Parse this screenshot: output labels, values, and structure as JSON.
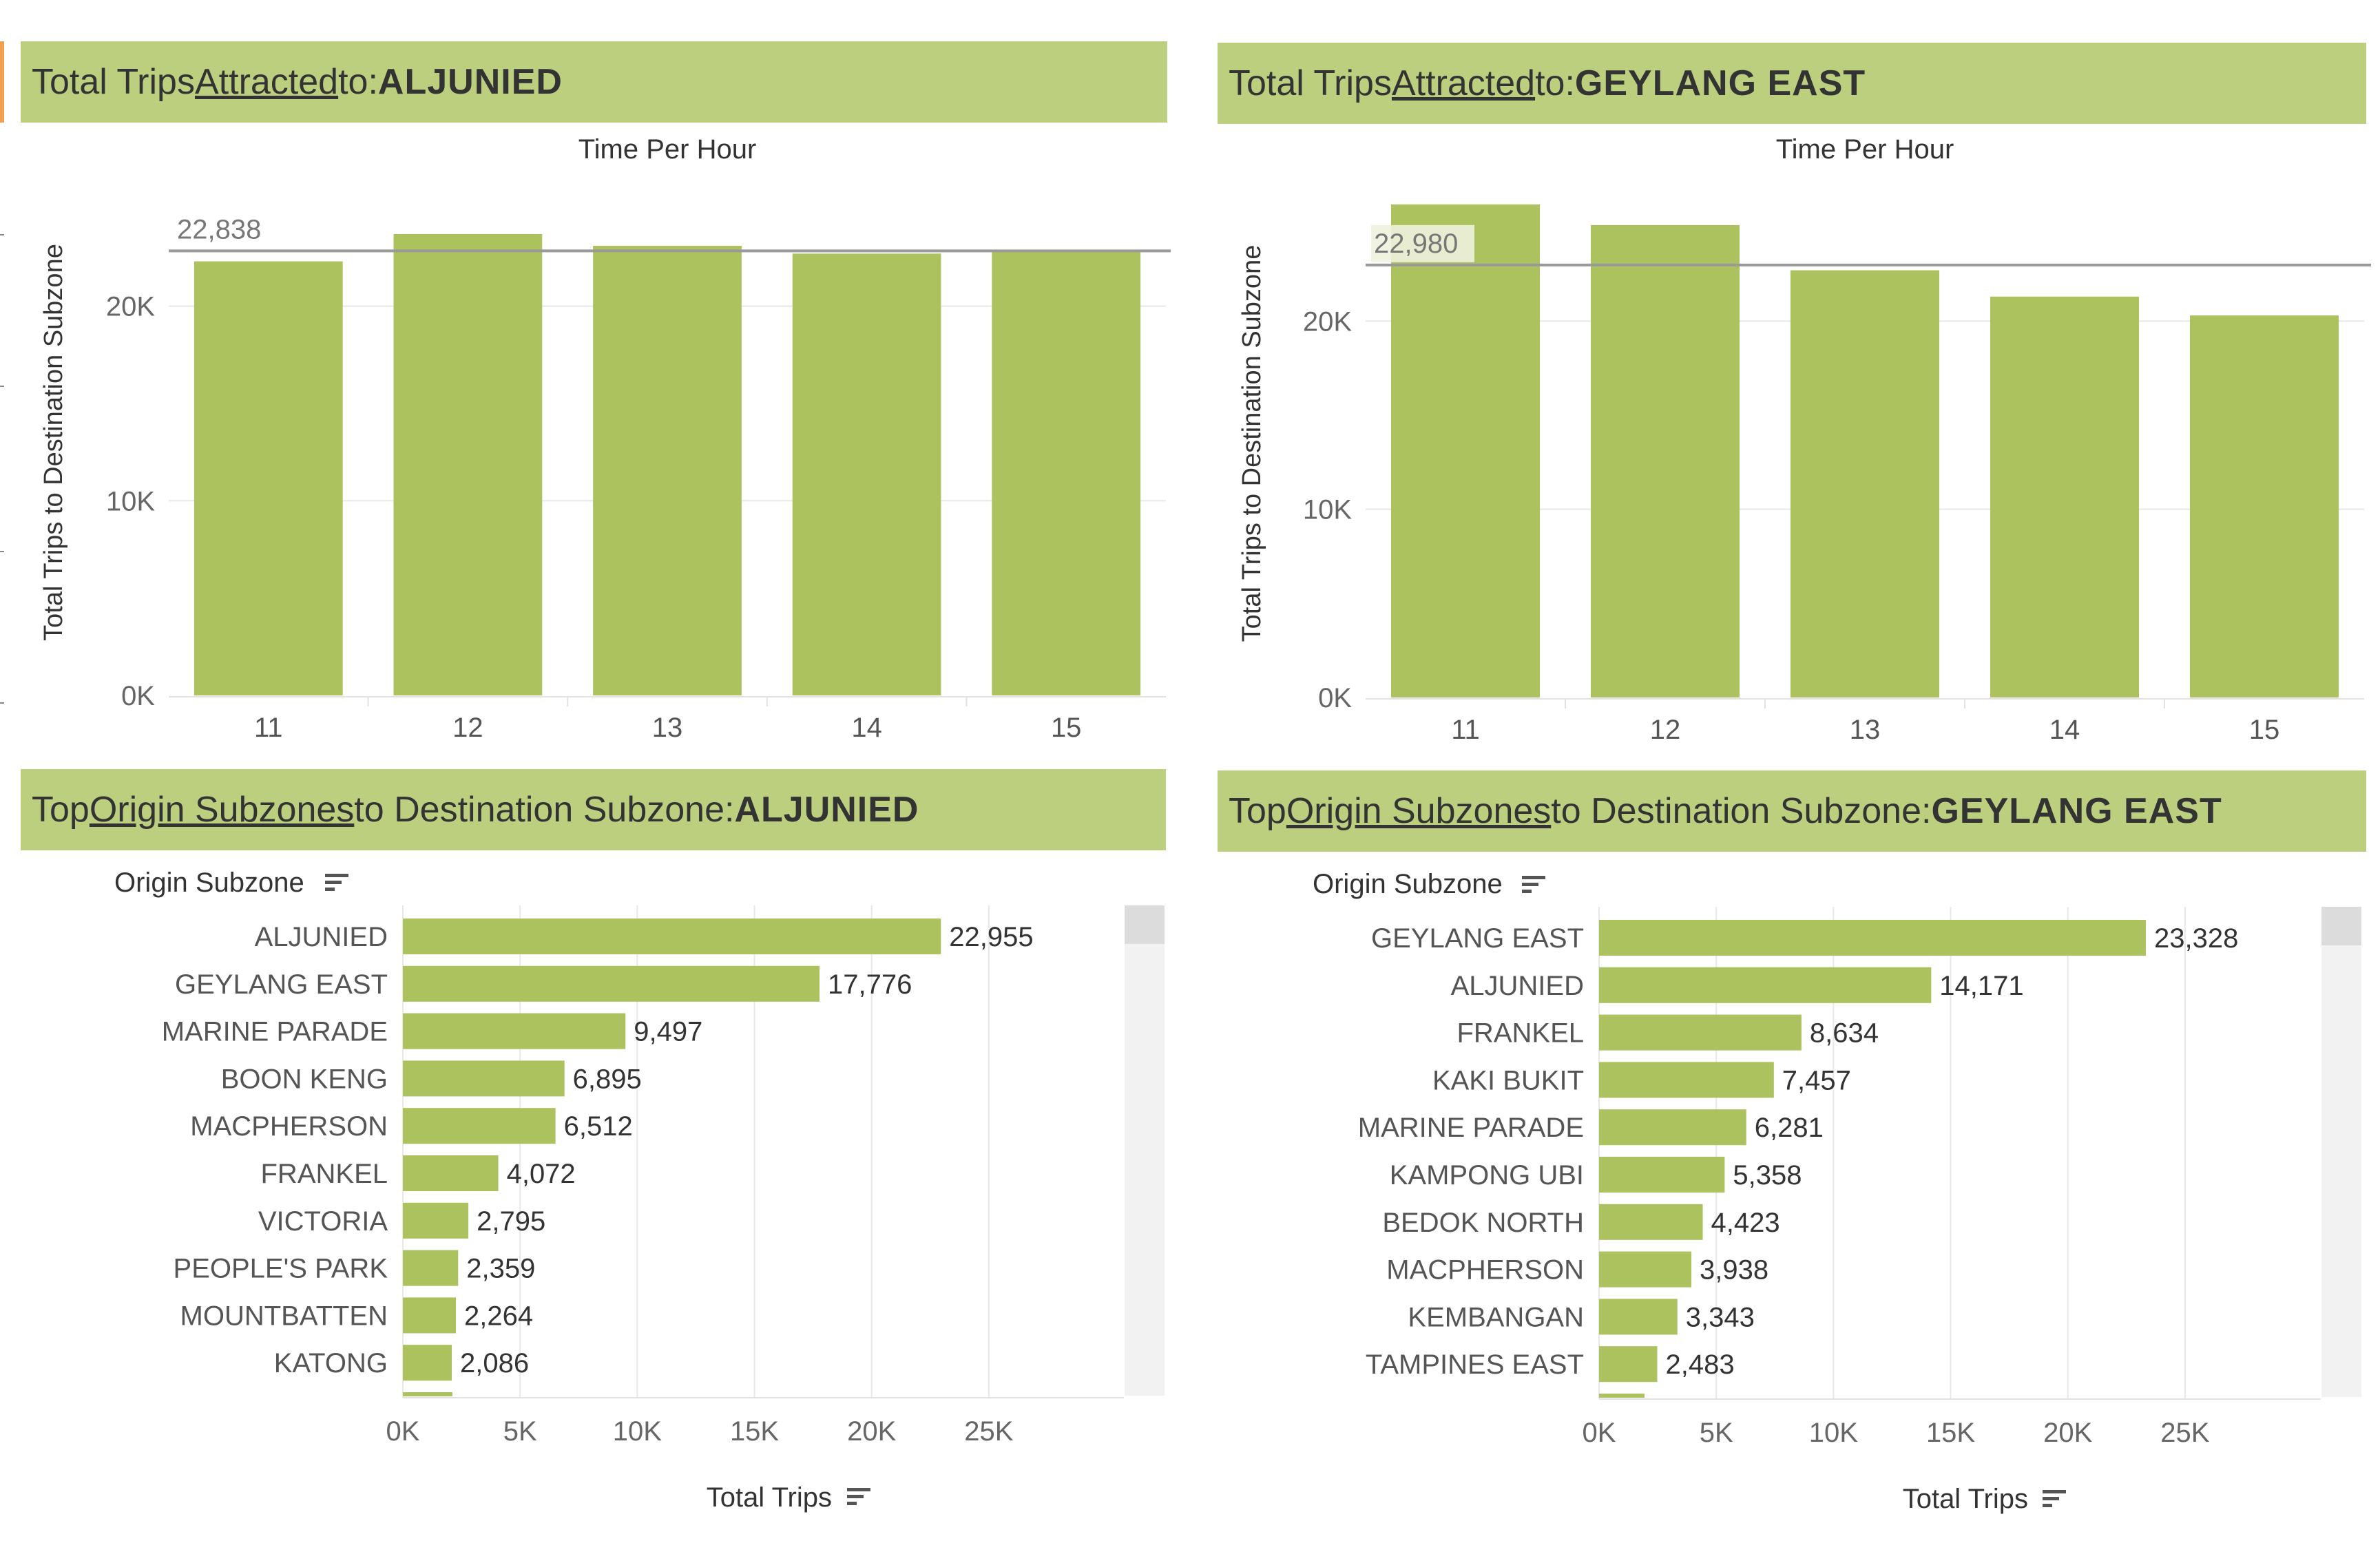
{
  "panels": {
    "tl_banner": {
      "prefix": "Total Trips ",
      "link": "Attracted",
      "mid": " to: ",
      "dest": "ALJUNIED"
    },
    "tr_banner": {
      "prefix": "Total Trips ",
      "link": "Attracted",
      "mid": " to: ",
      "dest": "GEYLANG EAST"
    },
    "bl_banner": {
      "prefix": "Top ",
      "link": "Origin Subzones",
      "mid": " to Destination Subzone: ",
      "dest": "ALJUNIED"
    },
    "br_banner": {
      "prefix": "Top ",
      "link": "Origin Subzones",
      "mid": " to Destination Subzone: ",
      "dest": "GEYLANG EAST"
    }
  },
  "colors": {
    "bar": "#acc25e",
    "banner": "#bccf7e",
    "grid": "#e8e8e8",
    "refline": "#999999"
  },
  "icons": {
    "sort": "sort-descending-icon"
  },
  "chart_data": [
    {
      "type": "bar",
      "title": "Total Trips Attracted to: ALJUNIED",
      "xlabel": "Time Per Hour",
      "ylabel": "Total Trips to Destination Subzone",
      "categories": [
        "11",
        "12",
        "13",
        "14",
        "15"
      ],
      "values": [
        22300,
        23700,
        23100,
        22700,
        22900
      ],
      "ylim": [
        0,
        26000
      ],
      "yticks": [
        "0K",
        "10K",
        "20K"
      ],
      "reference_line": {
        "value": 22838,
        "label": "22,838"
      },
      "grid": "horizontal"
    },
    {
      "type": "bar",
      "title": "Total Trips Attracted to: GEYLANG EAST",
      "xlabel": "Time Per Hour",
      "ylabel": "Total Trips to Destination Subzone",
      "categories": [
        "11",
        "12",
        "13",
        "14",
        "15"
      ],
      "values": [
        26200,
        25100,
        22700,
        21300,
        20300
      ],
      "ylim": [
        0,
        27000
      ],
      "yticks": [
        "0K",
        "10K",
        "20K"
      ],
      "reference_line": {
        "value": 22980,
        "label": "22,980"
      },
      "grid": "horizontal"
    },
    {
      "type": "bar",
      "orientation": "horizontal",
      "title": "Top Origin Subzones to Destination Subzone: ALJUNIED",
      "ylabel": "Origin Subzone",
      "xlabel": "Total Trips",
      "categories": [
        "ALJUNIED",
        "GEYLANG EAST",
        "MARINE PARADE",
        "BOON KENG",
        "MACPHERSON",
        "FRANKEL",
        "VICTORIA",
        "PEOPLE'S PARK",
        "MOUNTBATTEN",
        "KATONG"
      ],
      "values": [
        22955,
        17776,
        9497,
        6895,
        6512,
        4072,
        2795,
        2359,
        2264,
        2086
      ],
      "labels": [
        "22,955",
        "17,776",
        "9,497",
        "6,895",
        "6,512",
        "4,072",
        "2,795",
        "2,359",
        "2,264",
        "2,086"
      ],
      "xlim": [
        0,
        28500
      ],
      "xticks": [
        "0K",
        "5K",
        "10K",
        "15K",
        "20K",
        "25K"
      ],
      "grid": "vertical"
    },
    {
      "type": "bar",
      "orientation": "horizontal",
      "title": "Top Origin Subzones to Destination Subzone: GEYLANG EAST",
      "ylabel": "Origin Subzone",
      "xlabel": "Total Trips",
      "categories": [
        "GEYLANG EAST",
        "ALJUNIED",
        "FRANKEL",
        "KAKI BUKIT",
        "MARINE PARADE",
        "KAMPONG UBI",
        "BEDOK NORTH",
        "MACPHERSON",
        "KEMBANGAN",
        "TAMPINES EAST"
      ],
      "values": [
        23328,
        14171,
        8634,
        7457,
        6281,
        5358,
        4423,
        3938,
        3343,
        2483
      ],
      "labels": [
        "23,328",
        "14,171",
        "8,634",
        "7,457",
        "6,281",
        "5,358",
        "4,423",
        "3,938",
        "3,343",
        "2,483"
      ],
      "xlim": [
        0,
        28500
      ],
      "xticks": [
        "0K",
        "5K",
        "10K",
        "15K",
        "20K",
        "25K"
      ],
      "grid": "vertical"
    }
  ]
}
